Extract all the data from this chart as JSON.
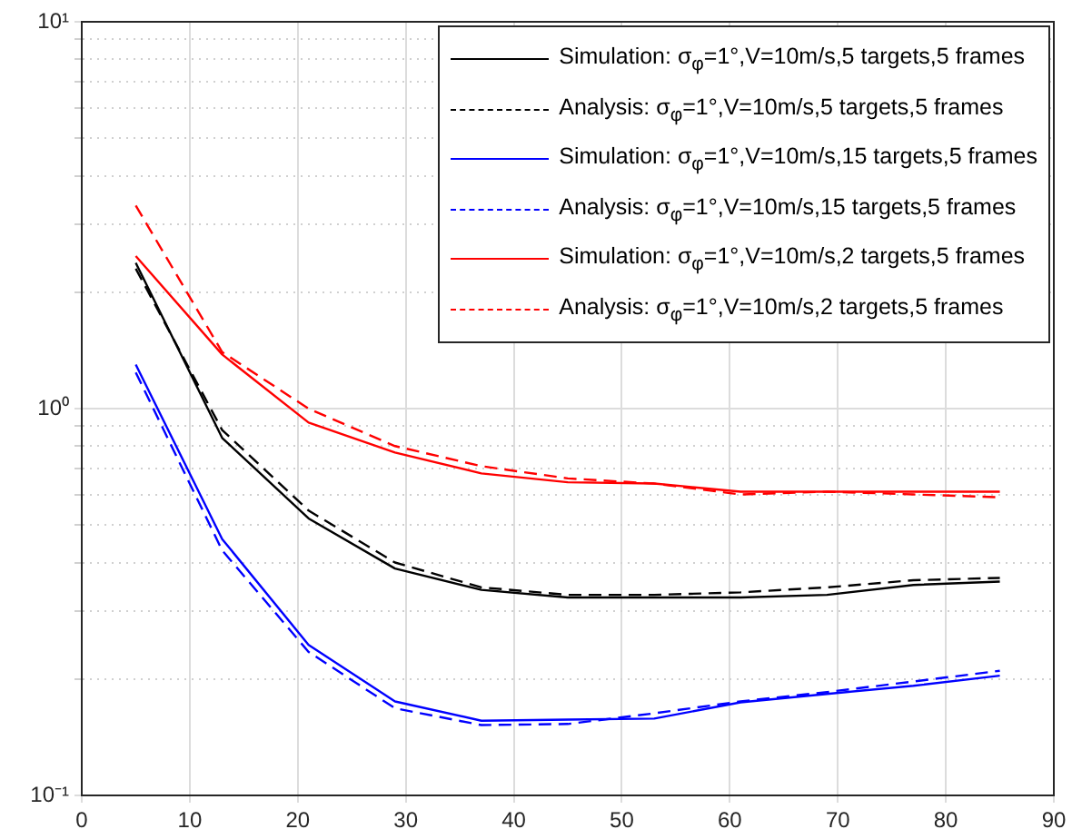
{
  "chart_data": {
    "type": "line",
    "x": [
      5,
      13,
      21,
      29,
      37,
      45,
      53,
      61,
      69,
      77,
      85
    ],
    "xlim": [
      0,
      90
    ],
    "xticks": [
      0,
      10,
      20,
      30,
      40,
      50,
      60,
      70,
      80,
      90
    ],
    "ylim": [
      0.1,
      10
    ],
    "log": "y",
    "yticks": [
      {
        "value": 0.1,
        "label": "10⁻¹"
      },
      {
        "value": 0.2,
        "label": null
      },
      {
        "value": 0.3,
        "label": null
      },
      {
        "value": 0.4,
        "label": null
      },
      {
        "value": 0.5,
        "label": null
      },
      {
        "value": 0.6,
        "label": null
      },
      {
        "value": 0.7,
        "label": null
      },
      {
        "value": 0.8,
        "label": null
      },
      {
        "value": 0.9,
        "label": null
      },
      {
        "value": 1,
        "label": "10⁰"
      },
      {
        "value": 2,
        "label": null
      },
      {
        "value": 3,
        "label": null
      },
      {
        "value": 4,
        "label": null
      },
      {
        "value": 5,
        "label": null
      },
      {
        "value": 6,
        "label": null
      },
      {
        "value": 7,
        "label": null
      },
      {
        "value": 8,
        "label": null
      },
      {
        "value": 9,
        "label": null
      },
      {
        "value": 10,
        "label": "10¹"
      }
    ],
    "grid": true,
    "legend": "top right",
    "marker": "none",
    "series": [
      {
        "name": "Simulation: σ$_{φ}$=1°,V=10m/s,5 targets,5 frames",
        "color": "#000000",
        "line_style": "solid",
        "values": [
          2.38,
          0.84,
          0.52,
          0.386,
          0.34,
          0.325,
          0.325,
          0.325,
          0.33,
          0.35,
          0.357
        ]
      },
      {
        "name": "Analysis: σ$_{φ}$=1°,V=10m/s,5 targets,5 frames",
        "color": "#000000",
        "line_style": "dashed",
        "values": [
          2.3,
          0.88,
          0.545,
          0.4,
          0.345,
          0.33,
          0.33,
          0.335,
          0.345,
          0.36,
          0.365
        ]
      },
      {
        "name": "Simulation: σ$_{φ}$=1°,V=10m/s,15 targets,5 frames",
        "color": "#0000ff",
        "line_style": "solid",
        "values": [
          1.3,
          0.46,
          0.245,
          0.175,
          0.156,
          0.157,
          0.158,
          0.174,
          0.183,
          0.192,
          0.204
        ]
      },
      {
        "name": "Analysis: σ$_{φ}$=1°,V=10m/s,15 targets,5 frames",
        "color": "#0000ff",
        "line_style": "dashed",
        "values": [
          1.24,
          0.43,
          0.235,
          0.168,
          0.152,
          0.153,
          0.163,
          0.175,
          0.185,
          0.197,
          0.21
        ]
      },
      {
        "name": "Simulation: σ$_{φ}$=1°,V=10m/s,2 targets,5 frames",
        "color": "#ff0000",
        "line_style": "solid",
        "values": [
          2.48,
          1.38,
          0.92,
          0.77,
          0.68,
          0.645,
          0.64,
          0.61,
          0.61,
          0.61,
          0.61
        ]
      },
      {
        "name": "Analysis: σ$_{φ}$=1°,V=10m/s,2 targets,5 frames",
        "color": "#ff0000",
        "line_style": "dashed",
        "values": [
          3.35,
          1.4,
          1.0,
          0.8,
          0.71,
          0.66,
          0.64,
          0.6,
          0.61,
          0.6,
          0.59
        ]
      }
    ]
  }
}
